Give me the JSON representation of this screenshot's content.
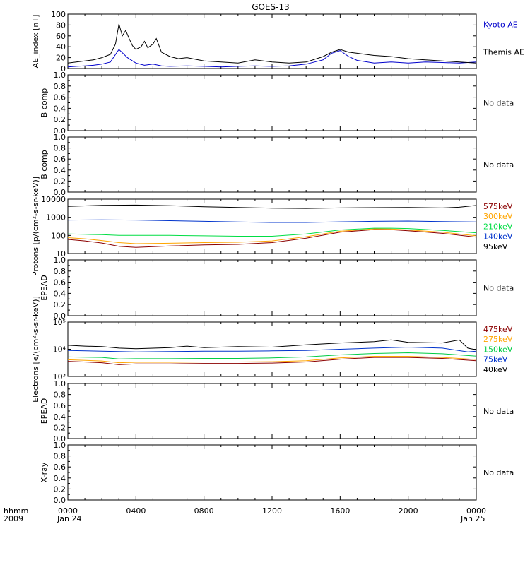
{
  "title": "GOES-13",
  "colors": {
    "kyoto": "#0000cc",
    "themis": "#000000",
    "p575": "#8b0000",
    "p300": "#ffa500",
    "p210": "#00dd44",
    "p140": "#0033cc",
    "p95": "#000000",
    "e475": "#8b0000",
    "e275": "#ffa500",
    "e150": "#00cc44",
    "e75": "#0033cc",
    "e40": "#000000"
  },
  "xaxis": {
    "corner_top": "hhmm",
    "corner_bottom": "2009",
    "ticks": [
      "0000",
      "0400",
      "0800",
      "1200",
      "1600",
      "2000",
      "0000"
    ],
    "date_start": "Jan 24",
    "date_end": "Jan 25"
  },
  "chart_data": [
    {
      "type": "line",
      "panel": "ae_index",
      "ylabel": "AE_index [nT]",
      "ylim": [
        0,
        100
      ],
      "yticks": [
        "0",
        "20",
        "40",
        "60",
        "80",
        "100"
      ],
      "series": [
        {
          "name": "Kyoto AE",
          "x": [
            0,
            0.5,
            1,
            1.5,
            2,
            2.5,
            3,
            3.5,
            4,
            4.5,
            5,
            5.5,
            6,
            7,
            8,
            9,
            10,
            11,
            12,
            13,
            14,
            15,
            15.5,
            16,
            16.5,
            17,
            18,
            19,
            20,
            21,
            22,
            23,
            24
          ],
          "y": [
            3,
            4,
            5,
            6,
            8,
            12,
            35,
            20,
            10,
            6,
            8,
            5,
            4,
            5,
            4,
            3,
            4,
            5,
            4,
            5,
            8,
            16,
            28,
            33,
            22,
            15,
            10,
            12,
            10,
            12,
            11,
            10,
            12
          ]
        },
        {
          "name": "Themis AE",
          "x": [
            0,
            0.5,
            1,
            1.5,
            2,
            2.5,
            2.8,
            3,
            3.2,
            3.4,
            3.6,
            3.8,
            4,
            4.3,
            4.5,
            4.7,
            5,
            5.2,
            5.5,
            6,
            6.5,
            7,
            8,
            9,
            10,
            11,
            12,
            13,
            14,
            15,
            15.5,
            16,
            16.5,
            17,
            17.5,
            18,
            19,
            20,
            21,
            22,
            23,
            24
          ],
          "y": [
            10,
            12,
            14,
            16,
            20,
            26,
            45,
            82,
            60,
            70,
            55,
            42,
            35,
            40,
            50,
            38,
            45,
            55,
            30,
            22,
            18,
            20,
            14,
            12,
            10,
            16,
            12,
            10,
            12,
            22,
            30,
            35,
            30,
            28,
            26,
            24,
            22,
            18,
            16,
            14,
            12,
            10
          ]
        }
      ]
    },
    {
      "type": "line",
      "panel": "b_comp_1",
      "ylabel": "B comp",
      "ylim": [
        0,
        1
      ],
      "yticks": [
        "0.0",
        "0.2",
        "0.4",
        "0.6",
        "0.8",
        "1.0"
      ],
      "status": "No data",
      "series": []
    },
    {
      "type": "line",
      "panel": "b_comp_2",
      "ylabel": "B comp",
      "ylim": [
        0,
        1
      ],
      "yticks": [
        "0.0",
        "0.2",
        "0.4",
        "0.6",
        "0.8",
        "1.0"
      ],
      "status": "No data",
      "series": []
    },
    {
      "type": "line",
      "panel": "protons",
      "ylabel": "Protons [p/(cm²-s-sr-keV)]",
      "yscale": "log",
      "ylim": [
        10,
        10000
      ],
      "yticks": [
        "10",
        "100",
        "1000",
        "10000"
      ],
      "series": [
        {
          "name": "575keV",
          "x": [
            0,
            1,
            2,
            3,
            4,
            6,
            8,
            10,
            12,
            14,
            16,
            18,
            19,
            20,
            22,
            24
          ],
          "y": [
            60,
            50,
            38,
            25,
            22,
            26,
            30,
            32,
            40,
            70,
            150,
            210,
            205,
            180,
            130,
            80
          ]
        },
        {
          "name": "300keV",
          "x": [
            0,
            1,
            2,
            3,
            4,
            6,
            8,
            10,
            12,
            14,
            16,
            18,
            19,
            20,
            22,
            24
          ],
          "y": [
            75,
            65,
            52,
            40,
            35,
            37,
            40,
            42,
            50,
            85,
            170,
            230,
            225,
            200,
            150,
            95
          ]
        },
        {
          "name": "210keV",
          "x": [
            0,
            1,
            2,
            3,
            4,
            6,
            8,
            10,
            12,
            14,
            16,
            18,
            19,
            20,
            22,
            24
          ],
          "y": [
            120,
            115,
            110,
            100,
            100,
            100,
            95,
            90,
            90,
            120,
            200,
            250,
            250,
            240,
            190,
            140
          ]
        },
        {
          "name": "140keV",
          "x": [
            0,
            2,
            4,
            6,
            8,
            10,
            12,
            14,
            16,
            18,
            20,
            22,
            24
          ],
          "y": [
            700,
            720,
            700,
            650,
            600,
            550,
            520,
            520,
            560,
            600,
            620,
            580,
            550
          ]
        },
        {
          "name": "95keV",
          "x": [
            0,
            2,
            4,
            6,
            8,
            10,
            12,
            14,
            16,
            18,
            20,
            22,
            23,
            24
          ],
          "y": [
            4000,
            4600,
            4700,
            4400,
            3800,
            3500,
            3200,
            3100,
            3300,
            3400,
            3500,
            3300,
            3600,
            4500
          ]
        }
      ]
    },
    {
      "type": "line",
      "panel": "epead_1",
      "ylabel": "EPEAD",
      "ylim": [
        0,
        1
      ],
      "yticks": [
        "0.0",
        "0.2",
        "0.4",
        "0.6",
        "0.8",
        "1.0"
      ],
      "status": "No data",
      "series": []
    },
    {
      "type": "line",
      "panel": "electrons",
      "ylabel": "Electrons [e/(cm²-s-sr-keV)]",
      "yscale": "log",
      "ylim": [
        1000,
        100000
      ],
      "yticks": [
        "10³",
        "10⁴",
        "10⁵"
      ],
      "series": [
        {
          "name": "475keV",
          "x": [
            0,
            2,
            3,
            4,
            6,
            8,
            10,
            12,
            14,
            16,
            18,
            20,
            22,
            24
          ],
          "y": [
            3600,
            3200,
            2700,
            2900,
            2900,
            3000,
            3000,
            3100,
            3400,
            4300,
            5000,
            5000,
            4600,
            3800
          ]
        },
        {
          "name": "275keV",
          "x": [
            0,
            2,
            3,
            4,
            6,
            8,
            10,
            12,
            14,
            16,
            18,
            20,
            22,
            24
          ],
          "y": [
            4100,
            3700,
            3200,
            3300,
            3300,
            3400,
            3400,
            3500,
            3800,
            4800,
            5500,
            5500,
            5000,
            4200
          ]
        },
        {
          "name": "150keV",
          "x": [
            0,
            2,
            3,
            4,
            6,
            8,
            10,
            12,
            14,
            16,
            18,
            20,
            22,
            24
          ],
          "y": [
            5200,
            5000,
            4400,
            4500,
            4500,
            4600,
            4600,
            4800,
            5200,
            6200,
            7000,
            7400,
            6800,
            5600
          ]
        },
        {
          "name": "75keV",
          "x": [
            0,
            2,
            4,
            6,
            8,
            10,
            12,
            14,
            16,
            18,
            20,
            22,
            23.5,
            24
          ],
          "y": [
            9000,
            8500,
            8000,
            8200,
            8500,
            8500,
            8700,
            9000,
            10000,
            11000,
            12000,
            11000,
            8000,
            8500
          ]
        },
        {
          "name": "40keV",
          "x": [
            0,
            1,
            2,
            3,
            4,
            6,
            7,
            8,
            10,
            12,
            14,
            16,
            18,
            19,
            20,
            22,
            23,
            23.5,
            24
          ],
          "y": [
            14000,
            13000,
            12500,
            11000,
            10500,
            11500,
            13000,
            11500,
            12500,
            12000,
            14500,
            17000,
            19000,
            22000,
            18000,
            17000,
            22000,
            11000,
            9500
          ]
        }
      ]
    },
    {
      "type": "line",
      "panel": "epead_2",
      "ylabel": "EPEAD",
      "ylim": [
        0,
        1
      ],
      "yticks": [
        "0.0",
        "0.2",
        "0.4",
        "0.6",
        "0.8",
        "1.0"
      ],
      "status": "No data",
      "series": []
    },
    {
      "type": "line",
      "panel": "xray",
      "ylabel": "X-ray",
      "ylim": [
        0,
        1
      ],
      "yticks": [
        "0.0",
        "0.2",
        "0.4",
        "0.6",
        "0.8",
        "1.0"
      ],
      "status": "No data",
      "series": []
    }
  ]
}
